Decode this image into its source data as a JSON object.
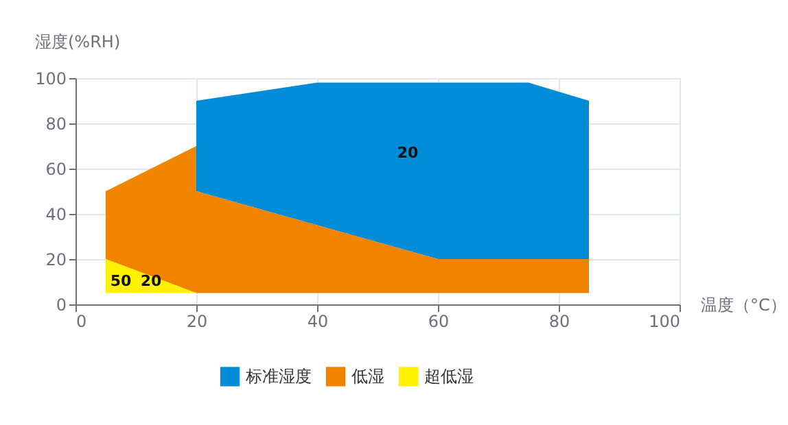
{
  "chart_data": {
    "type": "area",
    "xlabel": "温度（°C）",
    "ylabel": "湿度(%RH)",
    "xlim": [
      0,
      100
    ],
    "xticks": [
      0,
      20,
      40,
      60,
      80,
      100
    ],
    "ylim": [
      0,
      100
    ],
    "yticks": [
      0,
      20,
      40,
      60,
      80,
      100
    ],
    "grid": true,
    "legend": "bottom",
    "series": [
      {
        "name": "标准湿度",
        "color": "#008cd6",
        "x": [
          20,
          40,
          75,
          85,
          85,
          60,
          20
        ],
        "values": [
          90,
          98,
          98,
          90,
          20,
          20,
          50
        ]
      },
      {
        "name": "低湿",
        "color": "#f08300",
        "x": [
          5,
          5,
          20,
          20,
          60,
          85,
          85,
          20
        ],
        "values": [
          20,
          50,
          70,
          50,
          20,
          20,
          5,
          5
        ]
      },
      {
        "name": "超低湿",
        "color": "#fff100",
        "x": [
          5,
          5,
          20
        ],
        "values": [
          5,
          20,
          5
        ]
      }
    ],
    "annotations": [
      "20",
      "50",
      "20"
    ]
  }
}
